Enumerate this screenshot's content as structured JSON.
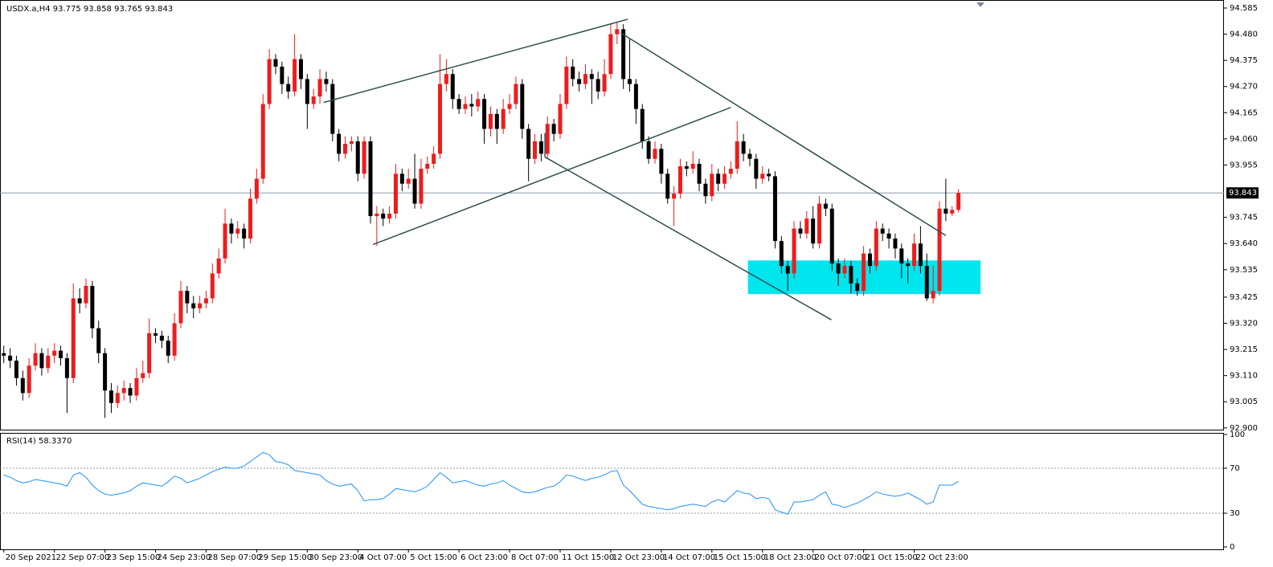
{
  "chart_data": {
    "type": "candlestick",
    "title": "USDX.a,H4  93.775 93.858 93.765 93.843",
    "up_color": "#ee1c1c",
    "down_color": "#000000",
    "ylim": [
      92.893,
      94.614
    ],
    "xlim": [
      -0.6,
      193
    ],
    "yticks": [
      94.585,
      {
        "value": 94.48,
        "label": "94.480"
      },
      94.375,
      {
        "value": 94.27,
        "label": "94.270"
      },
      94.165,
      {
        "value": 94.06,
        "label": "94.060"
      },
      93.955,
      93.745,
      {
        "value": 93.64,
        "label": "93.640"
      },
      93.535,
      93.425,
      {
        "value": 93.32,
        "label": "93.320"
      },
      93.215,
      {
        "value": 93.11,
        "label": "93.110"
      },
      93.005,
      {
        "value": 92.9,
        "label": "92.900"
      }
    ],
    "current_price": 93.843,
    "xticks": [
      {
        "value": 0,
        "label": "20 Sep 2021"
      },
      {
        "value": 8,
        "label": "22 Sep 07:00"
      },
      {
        "value": 16,
        "label": "23 Sep 15:00"
      },
      {
        "value": 24,
        "label": "24 Sep 23:00"
      },
      {
        "value": 32,
        "label": "28 Sep 07:00"
      },
      {
        "value": 40,
        "label": "29 Sep 15:00"
      },
      {
        "value": 48,
        "label": "30 Sep 23:00"
      },
      {
        "value": 56,
        "label": "4 Oct 07:00"
      },
      {
        "value": 64,
        "label": "5 Oct 15:00"
      },
      {
        "value": 72,
        "label": "6 Oct 23:00"
      },
      {
        "value": 80,
        "label": "8 Oct 07:00"
      },
      {
        "value": 88,
        "label": "11 Oct 15:00"
      },
      {
        "value": 96,
        "label": "12 Oct 23:00"
      },
      {
        "value": 104,
        "label": "14 Oct 07:00"
      },
      {
        "value": 112,
        "label": "15 Oct 15:00"
      },
      {
        "value": 120,
        "label": "18 Oct 23:00"
      },
      {
        "value": 128,
        "label": "20 Oct 07:00"
      },
      {
        "value": 136,
        "label": "21 Oct 15:00"
      },
      {
        "value": 144,
        "label": "22 Oct 23:00"
      }
    ],
    "ohlc": [
      [
        93.2,
        93.23,
        93.16,
        93.19
      ],
      [
        93.19,
        93.22,
        93.14,
        93.17
      ],
      [
        93.17,
        93.19,
        93.07,
        93.1
      ],
      [
        93.1,
        93.13,
        93.01,
        93.04
      ],
      [
        93.04,
        93.18,
        93.02,
        93.15
      ],
      [
        93.15,
        93.24,
        93.13,
        93.2
      ],
      [
        93.2,
        93.22,
        93.11,
        93.14
      ],
      [
        93.14,
        93.22,
        93.12,
        93.19
      ],
      [
        93.19,
        93.24,
        93.16,
        93.21
      ],
      [
        93.21,
        93.23,
        93.15,
        93.18
      ],
      [
        93.18,
        93.2,
        92.96,
        93.1
      ],
      [
        93.1,
        93.48,
        93.08,
        93.42
      ],
      [
        93.42,
        93.46,
        93.36,
        93.4
      ],
      [
        93.4,
        93.5,
        93.38,
        93.47
      ],
      [
        93.47,
        93.49,
        93.26,
        93.3
      ],
      [
        93.3,
        93.33,
        93.16,
        93.2
      ],
      [
        93.2,
        93.22,
        92.94,
        93.05
      ],
      [
        93.05,
        93.08,
        92.96,
        93.0
      ],
      [
        93.0,
        93.07,
        92.98,
        93.04
      ],
      [
        93.04,
        93.09,
        93.01,
        93.06
      ],
      [
        93.06,
        93.08,
        93.0,
        93.03
      ],
      [
        93.03,
        93.14,
        93.01,
        93.1
      ],
      [
        93.1,
        93.17,
        93.08,
        93.12
      ],
      [
        93.12,
        93.34,
        93.1,
        93.28
      ],
      [
        93.28,
        93.3,
        93.24,
        93.27
      ],
      [
        93.27,
        93.29,
        93.22,
        93.25
      ],
      [
        93.25,
        93.27,
        93.16,
        93.19
      ],
      [
        93.19,
        93.36,
        93.17,
        93.32
      ],
      [
        93.32,
        93.49,
        93.3,
        93.45
      ],
      [
        93.45,
        93.47,
        93.36,
        93.4
      ],
      [
        93.4,
        93.43,
        93.34,
        93.38
      ],
      [
        93.38,
        93.43,
        93.36,
        93.4
      ],
      [
        93.4,
        93.45,
        93.38,
        93.42
      ],
      [
        93.42,
        93.56,
        93.4,
        93.52
      ],
      [
        93.52,
        93.62,
        93.5,
        93.58
      ],
      [
        93.58,
        93.78,
        93.56,
        93.72
      ],
      [
        93.72,
        93.74,
        93.64,
        93.68
      ],
      [
        93.68,
        93.73,
        93.66,
        93.7
      ],
      [
        93.7,
        93.72,
        93.62,
        93.66
      ],
      [
        93.66,
        93.86,
        93.64,
        93.82
      ],
      [
        93.82,
        93.94,
        93.8,
        93.9
      ],
      [
        93.9,
        94.24,
        93.88,
        94.2
      ],
      [
        94.2,
        94.42,
        94.18,
        94.38
      ],
      [
        94.38,
        94.4,
        94.32,
        94.35
      ],
      [
        94.35,
        94.37,
        94.24,
        94.28
      ],
      [
        94.28,
        94.31,
        94.22,
        94.25
      ],
      [
        94.25,
        94.48,
        94.23,
        94.38
      ],
      [
        94.38,
        94.4,
        94.26,
        94.3
      ],
      [
        94.3,
        94.32,
        94.1,
        94.2
      ],
      [
        94.2,
        94.26,
        94.18,
        94.23
      ],
      [
        94.23,
        94.34,
        94.2,
        94.3
      ],
      [
        94.3,
        94.33,
        94.25,
        94.28
      ],
      [
        94.28,
        94.3,
        94.05,
        94.08
      ],
      [
        94.08,
        94.1,
        93.97,
        94.0
      ],
      [
        94.0,
        94.07,
        93.98,
        94.04
      ],
      [
        94.04,
        94.07,
        94.01,
        94.05
      ],
      [
        94.05,
        94.07,
        93.89,
        93.92
      ],
      [
        93.92,
        94.07,
        93.9,
        94.05
      ],
      [
        94.05,
        94.07,
        93.72,
        93.75
      ],
      [
        93.75,
        93.79,
        93.63,
        93.76
      ],
      [
        93.76,
        93.78,
        93.71,
        93.74
      ],
      [
        93.74,
        93.79,
        93.72,
        93.76
      ],
      [
        93.76,
        93.96,
        93.74,
        93.92
      ],
      [
        93.92,
        93.94,
        93.85,
        93.88
      ],
      [
        93.88,
        93.94,
        93.86,
        93.9
      ],
      [
        93.9,
        94.0,
        93.78,
        93.8
      ],
      [
        93.8,
        93.98,
        93.78,
        93.94
      ],
      [
        93.94,
        93.99,
        93.92,
        93.96
      ],
      [
        93.96,
        94.03,
        93.94,
        94.0
      ],
      [
        94.0,
        94.4,
        93.98,
        94.28
      ],
      [
        94.28,
        94.38,
        94.25,
        94.32
      ],
      [
        94.32,
        94.34,
        94.18,
        94.22
      ],
      [
        94.22,
        94.24,
        94.16,
        94.18
      ],
      [
        94.18,
        94.23,
        94.16,
        94.2
      ],
      [
        94.2,
        94.24,
        94.15,
        94.19
      ],
      [
        94.19,
        94.25,
        94.17,
        94.22
      ],
      [
        94.22,
        94.24,
        94.04,
        94.1
      ],
      [
        94.1,
        94.19,
        94.07,
        94.16
      ],
      [
        94.16,
        94.18,
        94.04,
        94.1
      ],
      [
        94.1,
        94.22,
        94.08,
        94.18
      ],
      [
        94.18,
        94.24,
        94.16,
        94.2
      ],
      [
        94.2,
        94.31,
        94.18,
        94.28
      ],
      [
        94.28,
        94.3,
        94.06,
        94.1
      ],
      [
        94.1,
        94.12,
        93.89,
        93.98
      ],
      [
        93.98,
        94.08,
        93.96,
        94.05
      ],
      [
        94.05,
        94.08,
        93.97,
        94.0
      ],
      [
        94.0,
        94.15,
        93.98,
        94.12
      ],
      [
        94.12,
        94.14,
        94.05,
        94.08
      ],
      [
        94.08,
        94.24,
        94.06,
        94.2
      ],
      [
        94.2,
        94.39,
        94.18,
        94.35
      ],
      [
        94.35,
        94.38,
        94.27,
        94.3
      ],
      [
        94.3,
        94.33,
        94.25,
        94.28
      ],
      [
        94.28,
        94.36,
        94.26,
        94.32
      ],
      [
        94.32,
        94.34,
        94.2,
        94.3
      ],
      [
        94.3,
        94.33,
        94.22,
        94.25
      ],
      [
        94.25,
        94.38,
        94.23,
        94.32
      ],
      [
        94.32,
        94.52,
        94.3,
        94.48
      ],
      [
        94.48,
        94.53,
        94.44,
        94.5
      ],
      [
        94.5,
        94.52,
        94.26,
        94.3
      ],
      [
        94.3,
        94.46,
        94.25,
        94.28
      ],
      [
        94.28,
        94.3,
        94.12,
        94.18
      ],
      [
        94.18,
        94.2,
        94.02,
        94.05
      ],
      [
        94.05,
        94.07,
        93.96,
        93.98
      ],
      [
        93.98,
        94.05,
        93.96,
        94.02
      ],
      [
        94.02,
        94.04,
        93.88,
        93.92
      ],
      [
        93.92,
        93.94,
        93.8,
        93.82
      ],
      [
        93.82,
        93.87,
        93.71,
        93.84
      ],
      [
        93.84,
        93.98,
        93.82,
        93.95
      ],
      [
        93.95,
        93.97,
        93.91,
        93.94
      ],
      [
        93.94,
        94.01,
        93.92,
        93.96
      ],
      [
        93.96,
        93.98,
        93.85,
        93.88
      ],
      [
        93.88,
        93.9,
        93.8,
        93.83
      ],
      [
        93.83,
        93.96,
        93.81,
        93.92
      ],
      [
        93.92,
        93.94,
        93.85,
        93.88
      ],
      [
        93.88,
        93.95,
        93.86,
        93.92
      ],
      [
        93.92,
        93.97,
        93.9,
        93.94
      ],
      [
        93.94,
        94.13,
        93.92,
        94.05
      ],
      [
        94.05,
        94.08,
        93.97,
        94.0
      ],
      [
        94.0,
        94.02,
        93.95,
        93.98
      ],
      [
        93.98,
        94.0,
        93.86,
        93.9
      ],
      [
        93.9,
        93.95,
        93.88,
        93.92
      ],
      [
        93.92,
        93.94,
        93.89,
        93.91
      ],
      [
        93.91,
        93.93,
        93.62,
        93.65
      ],
      [
        93.65,
        93.67,
        93.52,
        93.55
      ],
      [
        93.55,
        93.57,
        93.45,
        93.52
      ],
      [
        93.52,
        93.73,
        93.5,
        93.7
      ],
      [
        93.7,
        93.73,
        93.66,
        93.68
      ],
      [
        93.68,
        93.77,
        93.66,
        93.74
      ],
      [
        93.74,
        93.79,
        93.62,
        93.64
      ],
      [
        93.64,
        93.83,
        93.62,
        93.8
      ],
      [
        93.8,
        93.82,
        93.75,
        93.78
      ],
      [
        93.78,
        93.8,
        93.53,
        93.56
      ],
      [
        93.56,
        93.58,
        93.47,
        93.52
      ],
      [
        93.52,
        93.58,
        93.5,
        93.55
      ],
      [
        93.55,
        93.57,
        93.44,
        93.48
      ],
      [
        93.48,
        93.5,
        93.43,
        93.45
      ],
      [
        93.45,
        93.63,
        93.43,
        93.6
      ],
      [
        93.6,
        93.62,
        93.52,
        93.55
      ],
      [
        93.55,
        93.73,
        93.53,
        93.7
      ],
      [
        93.7,
        93.72,
        93.65,
        93.68
      ],
      [
        93.68,
        93.7,
        93.62,
        93.66
      ],
      [
        93.66,
        93.68,
        93.58,
        93.62
      ],
      [
        93.62,
        93.64,
        93.5,
        93.56
      ],
      [
        93.56,
        93.58,
        93.48,
        93.55
      ],
      [
        93.55,
        93.68,
        93.53,
        93.64
      ],
      [
        93.64,
        93.71,
        93.52,
        93.55
      ],
      [
        93.55,
        93.6,
        93.41,
        93.42
      ],
      [
        93.42,
        93.55,
        93.4,
        93.45
      ],
      [
        93.45,
        93.81,
        93.43,
        93.78
      ],
      [
        93.78,
        93.9,
        93.73,
        93.76
      ],
      [
        93.76,
        93.79,
        93.75,
        93.775
      ],
      [
        93.775,
        93.858,
        93.765,
        93.843
      ]
    ],
    "trendlines": [
      [
        50.6,
        94.206,
        98.7,
        94.54
      ],
      [
        58.4,
        93.636,
        115.0,
        94.186
      ],
      [
        97.6,
        94.485,
        149.0,
        93.672
      ],
      [
        85.6,
        93.987,
        130.9,
        93.334
      ],
      [
        85.6,
        94.083,
        85.6,
        93.987
      ]
    ],
    "trendline_color": "#2f4f4f",
    "zone": {
      "x": [
        117.7,
        154.5
      ],
      "y": [
        93.437,
        93.572
      ],
      "color": "#00e5ee"
    },
    "rsi": {
      "title": "RSI(14) 58.3370",
      "color": "#1e90ff",
      "ylim": [
        0,
        100
      ],
      "yticks": [
        100,
        70,
        30,
        0
      ],
      "levels": [
        70,
        30
      ],
      "values": [
        64,
        62,
        59,
        57,
        58,
        60,
        59,
        58,
        57,
        56,
        54,
        64,
        66,
        62,
        55,
        50,
        47,
        46,
        47,
        48,
        50,
        54,
        57,
        56,
        55,
        54,
        58,
        63,
        61,
        57,
        59,
        61,
        64,
        67,
        69,
        71,
        70,
        70,
        72,
        76,
        80,
        84,
        82,
        76,
        75,
        73,
        68,
        67,
        66,
        65,
        64,
        59,
        56,
        54,
        55,
        56,
        50,
        41,
        42,
        42,
        43,
        47,
        52,
        51,
        50,
        49,
        51,
        54,
        60,
        66,
        62,
        57,
        58,
        59,
        57,
        55,
        54,
        56,
        57,
        59,
        55,
        52,
        49,
        48,
        49,
        51,
        53,
        54,
        58,
        64,
        63,
        61,
        59,
        61,
        62,
        64,
        67,
        68,
        55,
        50,
        44,
        38,
        36,
        35,
        34,
        33,
        34,
        36,
        37,
        38,
        37,
        36,
        40,
        42,
        40,
        45,
        50,
        48,
        47,
        43,
        44,
        43,
        33,
        31,
        29,
        40,
        40,
        41,
        42,
        46,
        49,
        38,
        37,
        35,
        37,
        39,
        42,
        45,
        49,
        47,
        46,
        45,
        46,
        48,
        45,
        42,
        38,
        40,
        55,
        55,
        55,
        58.337
      ]
    }
  }
}
